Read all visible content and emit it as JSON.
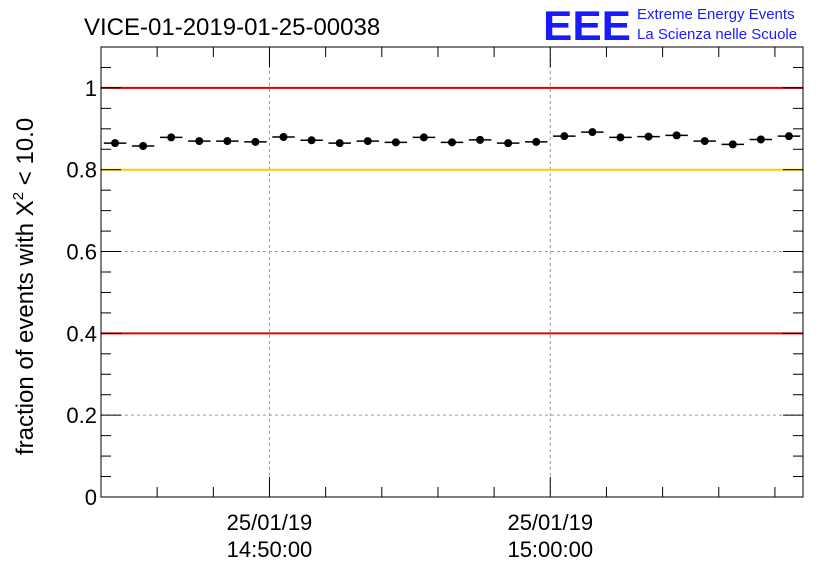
{
  "chart_data": {
    "type": "scatter",
    "title": "VICE-01-2019-01-25-00038",
    "logo": {
      "mark": "EEE",
      "line1": "Extreme Energy Events",
      "line2": "La Scienza nelle Scuole",
      "color": "#1a1aff"
    },
    "ylabel": {
      "prefix": "fraction of events with ",
      "symbol": "X",
      "sup": "2",
      "suffix": " < 10.0"
    },
    "ylim": [
      0,
      1.1
    ],
    "yticks": [
      {
        "value": 0,
        "label": "0"
      },
      {
        "value": 0.2,
        "label": "0.2"
      },
      {
        "value": 0.4,
        "label": "0.4"
      },
      {
        "value": 0.6,
        "label": "0.6"
      },
      {
        "value": 0.8,
        "label": "0.8"
      },
      {
        "value": 1,
        "label": "1"
      }
    ],
    "xlim": [
      0,
      25
    ],
    "xticks": [
      {
        "value": 6,
        "date": "25/01/19",
        "time": "14:50:00"
      },
      {
        "value": 16,
        "date": "25/01/19",
        "time": "15:00:00"
      }
    ],
    "x_minor_step": 2,
    "hlines": [
      {
        "y": 1.0,
        "color": "#e00000"
      },
      {
        "y": 0.8,
        "color": "#ffcc00"
      },
      {
        "y": 0.4,
        "color": "#e00000"
      }
    ],
    "grid": true,
    "points": {
      "x_halfwidth": 0.4,
      "x": [
        0.5,
        1.5,
        2.5,
        3.5,
        4.5,
        5.5,
        6.5,
        7.5,
        8.5,
        9.5,
        10.5,
        11.5,
        12.5,
        13.5,
        14.5,
        15.5,
        16.5,
        17.5,
        18.5,
        19.5,
        20.5,
        21.5,
        22.5,
        23.5,
        24.5
      ],
      "y": [
        0.865,
        0.858,
        0.879,
        0.87,
        0.87,
        0.868,
        0.88,
        0.872,
        0.865,
        0.87,
        0.867,
        0.879,
        0.867,
        0.873,
        0.865,
        0.868,
        0.882,
        0.892,
        0.879,
        0.881,
        0.884,
        0.87,
        0.862,
        0.874,
        0.882
      ]
    }
  }
}
